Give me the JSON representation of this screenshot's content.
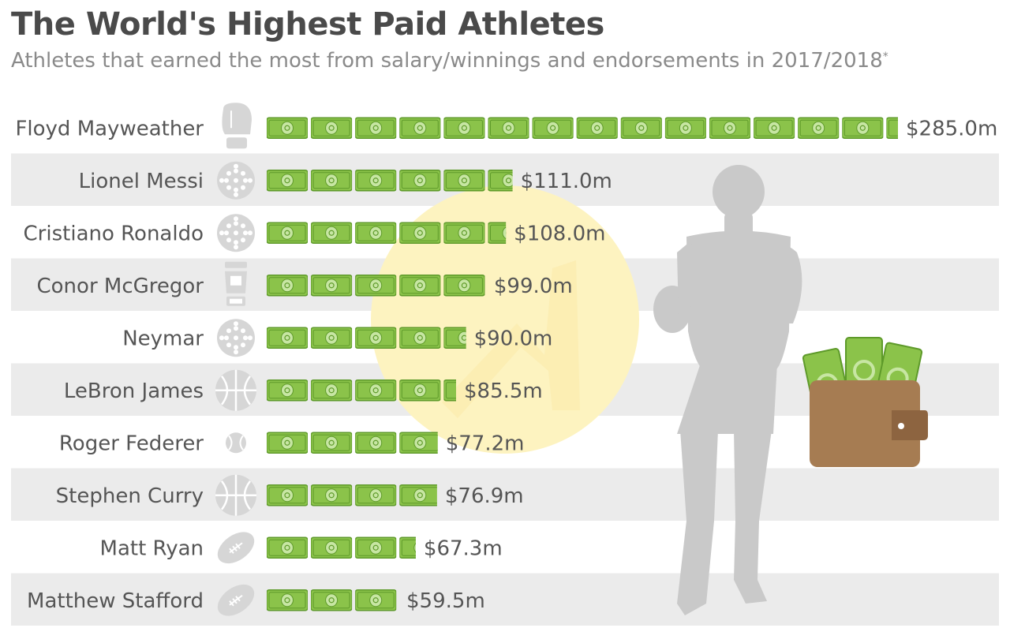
{
  "title": "The World's Highest Paid Athletes",
  "subtitle": "Athletes that earned the most from salary/winnings and endorsements in 2017/2018",
  "subtitle_mark": "*",
  "colors": {
    "bill_fill": "#8bc34a",
    "bill_border": "#5e9a2a",
    "bill_emblem": "#c7e6a3",
    "row_stripe": "#ebebeb",
    "icon_gray": "#d6d6d6",
    "silhouette": "#c9c9c9",
    "watermark": "#fdf3c0",
    "wallet": "#a67c52"
  },
  "chart_data": {
    "type": "bar",
    "orientation": "horizontal",
    "title": "The World's Highest Paid Athletes",
    "subtitle": "Athletes that earned the most from salary/winnings and endorsements in 2017/2018*",
    "categories": [
      "Floyd Mayweather",
      "Lionel Messi",
      "Cristiano Ronaldo",
      "Conor McGregor",
      "Neymar",
      "LeBron James",
      "Roger Federer",
      "Stephen Curry",
      "Matt Ryan",
      "Matthew Stafford"
    ],
    "values": [
      285.0,
      111.0,
      108.0,
      99.0,
      90.0,
      85.5,
      77.2,
      76.9,
      67.3,
      59.5
    ],
    "value_labels": [
      "$285.0m",
      "$111.0m",
      "$108.0m",
      "$99.0m",
      "$90.0m",
      "$85.5m",
      "$77.2m",
      "$76.9m",
      "$67.3m",
      "$59.5m"
    ],
    "sport_icons": [
      "boxing-glove-icon",
      "soccer-ball-icon",
      "soccer-ball-icon",
      "mma-glove-icon",
      "soccer-ball-icon",
      "basketball-icon",
      "tennis-ball-icon",
      "basketball-icon",
      "football-icon",
      "football-icon"
    ],
    "unit": "$ million",
    "value_per_bill": 20,
    "xlim": [
      0,
      285
    ],
    "grid": false,
    "legend": "none"
  }
}
